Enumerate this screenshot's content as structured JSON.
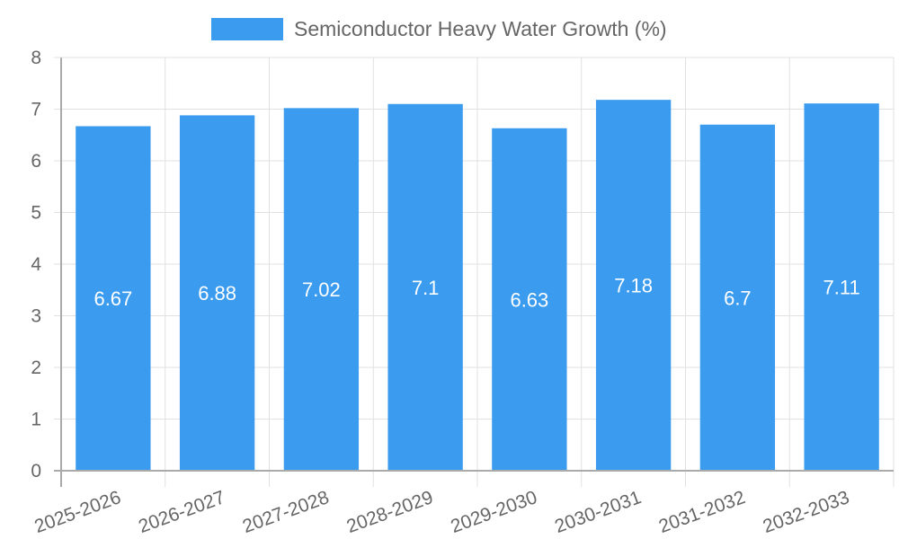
{
  "chart_data": {
    "type": "bar",
    "title": "",
    "legend": {
      "entries": [
        "Semiconductor Heavy Water Growth (%)"
      ],
      "position": "top"
    },
    "categories": [
      "2025-2026",
      "2026-2027",
      "2027-2028",
      "2028-2029",
      "2029-2030",
      "2030-2031",
      "2031-2032",
      "2032-2033"
    ],
    "series": [
      {
        "name": "Semiconductor Heavy Water Growth (%)",
        "values": [
          6.67,
          6.88,
          7.02,
          7.1,
          6.63,
          7.18,
          6.7,
          7.11
        ],
        "color": "#3a9bef"
      }
    ],
    "data_labels": [
      "6.67",
      "6.88",
      "7.02",
      "7.1",
      "6.63",
      "7.18",
      "6.7",
      "7.11"
    ],
    "xlabel": "",
    "ylabel": "",
    "ylim": [
      0,
      8
    ],
    "yticks": [
      "0",
      "1",
      "2",
      "3",
      "4",
      "5",
      "6",
      "7",
      "8"
    ],
    "grid": true,
    "x_tick_rotation": -20
  },
  "colors": {
    "bar": "#3a9bef",
    "grid": "#e1e1e1",
    "axis": "#aaaaaa",
    "tick_text": "#666666",
    "data_label": "#ffffff"
  }
}
